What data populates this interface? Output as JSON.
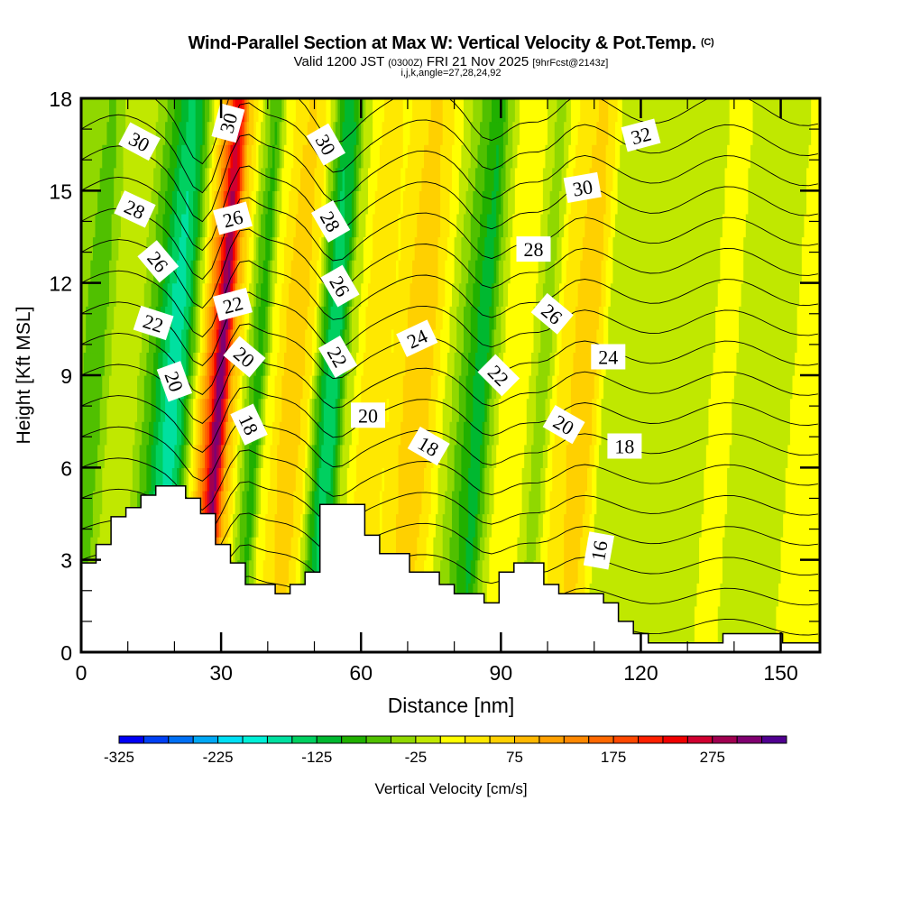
{
  "header": {
    "title": "Wind-Parallel Section at Max W: Vertical Velocity & Pot.Temp.",
    "copyright": "(C)",
    "valid_prefix": "Valid 1200 JST",
    "valid_utc": "(0300Z)",
    "valid_date": "FRI 21 Nov 2025",
    "forecast": "[9hrFcst@2143z]",
    "indices": "i,j,k,angle=27,28,24,92"
  },
  "chart_data": {
    "type": "heatmap",
    "title": "Wind-Parallel Section at Max W: Vertical Velocity & Pot.Temp.",
    "xlabel": "Distance [nm]",
    "ylabel": "Height [Kft MSL]",
    "xlim": [
      0,
      158.4
    ],
    "ylim": [
      0,
      18
    ],
    "xticks": [
      0,
      30,
      60,
      90,
      120,
      150
    ],
    "xtick_labels": [
      "0",
      "30",
      "60",
      "90",
      "120",
      "150"
    ],
    "yticks": [
      0,
      3,
      6,
      9,
      12,
      15,
      18
    ],
    "ytick_labels": [
      "0",
      "3",
      "6",
      "9",
      "12",
      "15",
      "18"
    ],
    "colorbar": {
      "label": "Vertical Velocity [cm/s]",
      "min": -325,
      "max": 350,
      "step": 25,
      "tick_labels": [
        "-325",
        "-225",
        "-125",
        "-25",
        "75",
        "175",
        "275"
      ],
      "tick_values": [
        -325,
        -225,
        -125,
        -25,
        75,
        175,
        275
      ],
      "colors": [
        "#0000f5",
        "#0040f5",
        "#0070f5",
        "#00a8f5",
        "#00e0f5",
        "#00f0d8",
        "#00e0a0",
        "#00d060",
        "#00b830",
        "#20b000",
        "#50c000",
        "#90d800",
        "#c0e800",
        "#ffff00",
        "#ffe800",
        "#ffd000",
        "#ffb800",
        "#ffa000",
        "#ff8800",
        "#ff6800",
        "#ff4800",
        "#ff2000",
        "#f00000",
        "#d00030",
        "#a00050",
        "#800070",
        "#500090"
      ]
    },
    "velocity_columns": {
      "x_nm": [
        0,
        3,
        6,
        9,
        12,
        15,
        18,
        20,
        22,
        24,
        26,
        28,
        29,
        30,
        31,
        32,
        34,
        36,
        38,
        40,
        43,
        46,
        49,
        51,
        53,
        55,
        57,
        60,
        63,
        66,
        69,
        72,
        75,
        78,
        81,
        84,
        86,
        88,
        90,
        93,
        96,
        99,
        102,
        105,
        108,
        110,
        112,
        114,
        117,
        120,
        125,
        130,
        135,
        140,
        145,
        150,
        155,
        158.4
      ],
      "w_cms": [
        -50,
        -75,
        -25,
        0,
        -25,
        -75,
        -150,
        -175,
        -125,
        -25,
        75,
        200,
        300,
        325,
        225,
        100,
        25,
        -50,
        -100,
        0,
        50,
        75,
        25,
        -75,
        -150,
        -125,
        -25,
        25,
        50,
        25,
        50,
        75,
        50,
        0,
        -50,
        -100,
        -125,
        -50,
        0,
        25,
        0,
        -50,
        25,
        50,
        75,
        50,
        0,
        -25,
        -25,
        0,
        -25,
        -25,
        0,
        0,
        -25,
        -25,
        25,
        0
      ]
    },
    "terrain": {
      "x_nm": [
        0,
        3.2,
        6.4,
        9.6,
        12.8,
        16,
        19.2,
        22.4,
        25.6,
        28.8,
        32,
        35.2,
        38.4,
        41.6,
        44.8,
        48,
        51.2,
        54.4,
        57.6,
        60.8,
        64,
        67.2,
        70.4,
        73.6,
        76.8,
        80,
        83.2,
        86.4,
        89.6,
        92.8,
        96,
        99.2,
        102.4,
        105.6,
        108.8,
        112,
        115.2,
        118.4,
        121.6,
        124.8,
        128,
        131.2,
        134.4,
        137.6,
        140.8,
        144,
        147.2,
        150.4,
        153.6,
        156.8
      ],
      "height_kft": [
        2.9,
        3.5,
        4.4,
        4.7,
        5.1,
        5.4,
        5.4,
        5.0,
        4.5,
        3.5,
        2.9,
        2.2,
        2.2,
        1.9,
        2.2,
        2.6,
        4.8,
        4.8,
        4.8,
        3.8,
        3.2,
        3.2,
        2.6,
        2.6,
        2.2,
        1.9,
        1.9,
        1.6,
        2.6,
        2.9,
        2.9,
        2.2,
        1.9,
        1.9,
        1.9,
        1.6,
        1.0,
        0.6,
        0.3,
        0.3,
        0.3,
        0.3,
        0.3,
        0.6,
        0.6,
        0.6,
        0.6,
        0.3,
        0.3,
        0.3
      ]
    },
    "theta_contours": {
      "levels_c": [
        15,
        16,
        17,
        18,
        19,
        20,
        21,
        22,
        23,
        24,
        25,
        26,
        27,
        28,
        29,
        30,
        31,
        32
      ],
      "labels": [
        {
          "text": "30",
          "x_nm": 12.5,
          "z_kft": 16.6,
          "angle": 28
        },
        {
          "text": "28",
          "x_nm": 11.5,
          "z_kft": 14.4,
          "angle": 25
        },
        {
          "text": "26",
          "x_nm": 16.5,
          "z_kft": 12.7,
          "angle": 50
        },
        {
          "text": "22",
          "x_nm": 15.5,
          "z_kft": 10.7,
          "angle": 18
        },
        {
          "text": "20",
          "x_nm": 20,
          "z_kft": 8.8,
          "angle": 70
        },
        {
          "text": "30",
          "x_nm": 31.5,
          "z_kft": 17.2,
          "angle": -75
        },
        {
          "text": "26",
          "x_nm": 32.5,
          "z_kft": 14.1,
          "angle": -15
        },
        {
          "text": "22",
          "x_nm": 32.5,
          "z_kft": 11.3,
          "angle": -15
        },
        {
          "text": "20",
          "x_nm": 35,
          "z_kft": 9.6,
          "angle": 40
        },
        {
          "text": "18",
          "x_nm": 36,
          "z_kft": 7.4,
          "angle": 65
        },
        {
          "text": "30",
          "x_nm": 52.5,
          "z_kft": 16.5,
          "angle": 60
        },
        {
          "text": "28",
          "x_nm": 53.5,
          "z_kft": 14.0,
          "angle": 60
        },
        {
          "text": "26",
          "x_nm": 55.5,
          "z_kft": 11.9,
          "angle": 60
        },
        {
          "text": "22",
          "x_nm": 55,
          "z_kft": 9.6,
          "angle": 60
        },
        {
          "text": "24",
          "x_nm": 72,
          "z_kft": 10.2,
          "angle": -25
        },
        {
          "text": "20",
          "x_nm": 61.5,
          "z_kft": 7.7,
          "angle": 0
        },
        {
          "text": "18",
          "x_nm": 74.5,
          "z_kft": 6.7,
          "angle": 30
        },
        {
          "text": "32",
          "x_nm": 120,
          "z_kft": 16.8,
          "angle": -15
        },
        {
          "text": "30",
          "x_nm": 107.5,
          "z_kft": 15.1,
          "angle": -10
        },
        {
          "text": "28",
          "x_nm": 97,
          "z_kft": 13.1,
          "angle": 0
        },
        {
          "text": "26",
          "x_nm": 101,
          "z_kft": 11.0,
          "angle": 40
        },
        {
          "text": "24",
          "x_nm": 113,
          "z_kft": 9.6,
          "angle": 0
        },
        {
          "text": "22",
          "x_nm": 89.5,
          "z_kft": 9.0,
          "angle": 45
        },
        {
          "text": "20",
          "x_nm": 103.5,
          "z_kft": 7.4,
          "angle": 30
        },
        {
          "text": "18",
          "x_nm": 116.5,
          "z_kft": 6.7,
          "angle": 0
        },
        {
          "text": "16",
          "x_nm": 111,
          "z_kft": 3.3,
          "angle": -80
        }
      ]
    }
  }
}
